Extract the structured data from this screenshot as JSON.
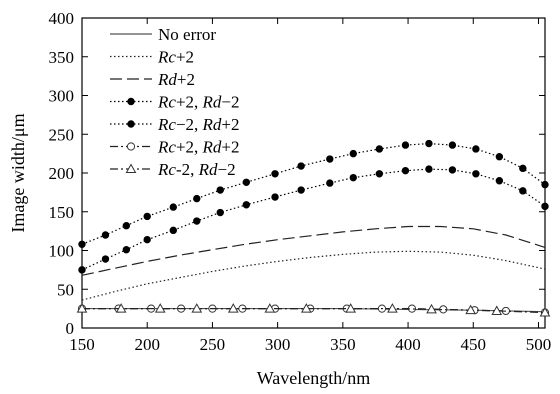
{
  "chart_data": {
    "type": "line",
    "title": "",
    "xlabel": "Wavelength/nm",
    "ylabel": "Image width/μm",
    "xlim": [
      150,
      505
    ],
    "ylim": [
      0,
      400
    ],
    "xticks": [
      150,
      200,
      250,
      300,
      350,
      400,
      450,
      500
    ],
    "yticks": [
      0,
      50,
      100,
      150,
      200,
      250,
      300,
      350,
      400
    ],
    "grid": false,
    "legend_position": "top-left",
    "series": [
      {
        "name": "No error",
        "style": "solid",
        "marker": "none",
        "color": "#555555",
        "x": [
          150,
          200,
          250,
          300,
          350,
          400,
          450,
          505
        ],
        "y": [
          25,
          25,
          25,
          25,
          25,
          24,
          23,
          21
        ]
      },
      {
        "name": "Rc+2",
        "style": "dotted",
        "marker": "none",
        "color": "#222222",
        "x": [
          150,
          175,
          200,
          225,
          250,
          275,
          300,
          325,
          350,
          375,
          400,
          425,
          450,
          475,
          505
        ],
        "y": [
          36,
          47,
          57,
          65,
          73,
          80,
          86,
          91,
          95,
          98,
          99,
          98,
          94,
          87,
          76
        ]
      },
      {
        "name": "Rd+2",
        "style": "longdash",
        "marker": "none",
        "color": "#222222",
        "x": [
          150,
          175,
          200,
          225,
          250,
          275,
          300,
          325,
          350,
          375,
          400,
          425,
          450,
          475,
          505
        ],
        "y": [
          68,
          77,
          86,
          94,
          101,
          108,
          114,
          119,
          124,
          128,
          131,
          131,
          128,
          120,
          104
        ]
      },
      {
        "name": "Rc+2, Rd−2",
        "style": "dotted",
        "marker": "filled-circle",
        "color": "#000000",
        "x": [
          150,
          168,
          184,
          200,
          220,
          238,
          256,
          276,
          298,
          318,
          340,
          358,
          378,
          398,
          416,
          434,
          452,
          470,
          488,
          505
        ],
        "y": [
          108,
          120,
          132,
          144,
          156,
          167,
          178,
          188,
          199,
          209,
          218,
          225,
          231,
          236,
          238,
          236,
          231,
          221,
          206,
          185
        ]
      },
      {
        "name": "Rc−2, Rd+2",
        "style": "dotted",
        "marker": "filled-circle",
        "color": "#000000",
        "x": [
          150,
          168,
          184,
          200,
          220,
          238,
          256,
          276,
          298,
          318,
          340,
          358,
          378,
          398,
          416,
          434,
          452,
          470,
          488,
          505
        ],
        "y": [
          75,
          89,
          101,
          114,
          126,
          138,
          149,
          159,
          169,
          178,
          187,
          194,
          199,
          203,
          205,
          204,
          199,
          190,
          177,
          157
        ]
      },
      {
        "name": "Rc+2, Rd+2",
        "style": "dashdot",
        "marker": "open-circle",
        "color": "#222222",
        "x": [
          150,
          178,
          203,
          226,
          250,
          273,
          298,
          325,
          353,
          380,
          403,
          427,
          451,
          475,
          505
        ],
        "y": [
          25,
          25,
          25,
          25,
          25,
          25,
          25,
          25,
          25,
          25,
          25,
          24,
          23,
          22,
          20
        ]
      },
      {
        "name": "Rc-2, Rd−2",
        "style": "dashdot",
        "marker": "open-triangle",
        "color": "#222222",
        "x": [
          150,
          180,
          210,
          238,
          266,
          294,
          322,
          356,
          388,
          418,
          448,
          468,
          505
        ],
        "y": [
          25,
          25,
          25,
          25,
          25,
          25,
          25,
          25,
          25,
          24,
          23,
          22,
          20
        ]
      }
    ]
  }
}
